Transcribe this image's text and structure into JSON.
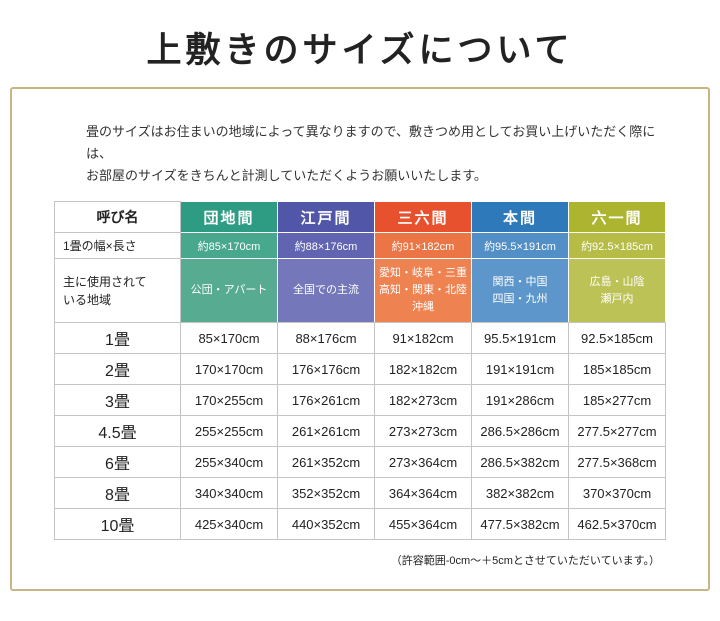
{
  "page": {
    "title": "上敷きのサイズについて",
    "intro_line1": "畳のサイズはお住まいの地域によって異なりますので、敷きつめ用としてお買い上げいただく際には、",
    "intro_line2": "お部屋のサイズをきちんと計測していただくようお願いいたします。",
    "footnote": "（許容範囲-0cm〜＋5cmとさせていただいています。）",
    "frame_border_color": "#c9b484"
  },
  "table": {
    "header_label": "呼び名",
    "row_width_label": "1畳の幅×長さ",
    "row_region_label": "主に使用されて\nいる地域",
    "columns": [
      {
        "name": "団地間",
        "width_length": "約85×170cm",
        "region": "公団・アパート",
        "colors": {
          "header": "#2d9c82",
          "width": "#47a88e",
          "region": "#57ab90"
        }
      },
      {
        "name": "江戸間",
        "width_length": "約88×176cm",
        "region": "全国での主流",
        "colors": {
          "header": "#5156a8",
          "width": "#6064b1",
          "region": "#7478bb"
        }
      },
      {
        "name": "三六間",
        "width_length": "約91×182cm",
        "region": "愛知・岐阜・三重\n高知・関東・北陸\n沖縄",
        "colors": {
          "header": "#e8512e",
          "width": "#eb7544",
          "region": "#ee8251"
        }
      },
      {
        "name": "本間",
        "width_length": "約95.5×191cm",
        "region": "関西・中国\n四国・九州",
        "colors": {
          "header": "#2e79ba",
          "width": "#528fc6",
          "region": "#5d96ca"
        }
      },
      {
        "name": "六一間",
        "width_length": "約92.5×185cm",
        "region": "広島・山陰\n瀬戸内",
        "colors": {
          "header": "#adb430",
          "width": "#b6bc45",
          "region": "#bdc256"
        }
      }
    ],
    "size_rows": [
      {
        "label": "1畳",
        "values": [
          "85×170cm",
          "88×176cm",
          "91×182cm",
          "95.5×191cm",
          "92.5×185cm"
        ]
      },
      {
        "label": "2畳",
        "values": [
          "170×170cm",
          "176×176cm",
          "182×182cm",
          "191×191cm",
          "185×185cm"
        ]
      },
      {
        "label": "3畳",
        "values": [
          "170×255cm",
          "176×261cm",
          "182×273cm",
          "191×286cm",
          "185×277cm"
        ]
      },
      {
        "label": "4.5畳",
        "values": [
          "255×255cm",
          "261×261cm",
          "273×273cm",
          "286.5×286cm",
          "277.5×277cm"
        ]
      },
      {
        "label": "6畳",
        "values": [
          "255×340cm",
          "261×352cm",
          "273×364cm",
          "286.5×382cm",
          "277.5×368cm"
        ]
      },
      {
        "label": "8畳",
        "values": [
          "340×340cm",
          "352×352cm",
          "364×364cm",
          "382×382cm",
          "370×370cm"
        ]
      },
      {
        "label": "10畳",
        "values": [
          "425×340cm",
          "440×352cm",
          "455×364cm",
          "477.5×382cm",
          "462.5×370cm"
        ]
      }
    ]
  }
}
